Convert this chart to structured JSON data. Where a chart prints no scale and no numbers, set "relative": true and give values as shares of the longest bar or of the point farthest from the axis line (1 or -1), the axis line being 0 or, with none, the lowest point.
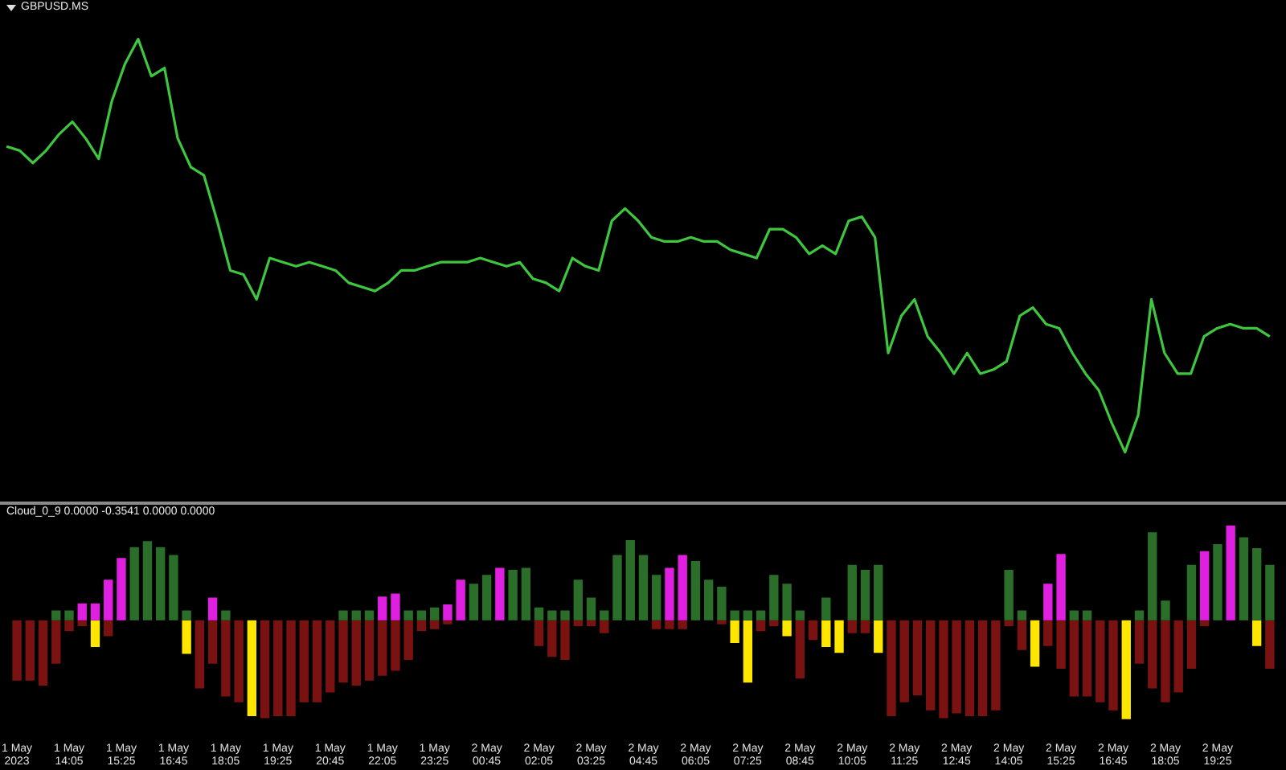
{
  "chart_data": [
    {
      "type": "line",
      "title": "GBPUSD.MS",
      "relative": true,
      "categories": [
        null,
        null,
        null,
        null,
        null,
        null,
        null,
        null,
        null,
        null,
        null,
        null,
        null,
        null,
        null,
        null,
        null,
        null,
        null,
        null,
        null,
        null,
        null,
        null,
        null,
        null,
        null,
        null,
        null,
        null,
        null,
        null,
        null,
        null,
        null,
        null,
        null,
        null,
        null,
        null,
        null,
        null,
        null,
        null,
        null,
        null,
        null,
        null,
        null,
        null,
        null,
        null,
        null,
        null,
        null,
        null,
        null,
        null,
        null,
        null,
        null,
        null,
        null,
        null,
        null,
        null,
        null,
        null,
        null,
        null,
        null,
        null,
        null,
        null,
        null,
        null,
        null,
        null,
        null,
        null,
        null,
        null,
        null,
        null,
        null,
        null,
        null,
        null,
        null,
        null,
        null,
        null,
        null,
        null,
        null,
        null,
        null
      ],
      "series": [
        {
          "color": "#3ec63e",
          "values": [
            0.74,
            0.73,
            0.7,
            0.73,
            0.77,
            0.8,
            0.76,
            0.71,
            0.85,
            0.94,
            1,
            0.91,
            0.93,
            0.76,
            0.69,
            0.67,
            0.56,
            0.44,
            0.43,
            0.37,
            0.47,
            0.46,
            0.45,
            0.46,
            0.45,
            0.44,
            0.41,
            0.4,
            0.39,
            0.41,
            0.44,
            0.44,
            0.45,
            0.46,
            0.46,
            0.46,
            0.47,
            0.46,
            0.45,
            0.46,
            0.42,
            0.41,
            0.39,
            0.47,
            0.45,
            0.44,
            0.56,
            0.59,
            0.56,
            0.52,
            0.51,
            0.51,
            0.52,
            0.51,
            0.51,
            0.49,
            0.48,
            0.47,
            0.54,
            0.54,
            0.52,
            0.48,
            0.5,
            0.48,
            0.56,
            0.57,
            0.52,
            0.24,
            0.33,
            0.37,
            0.28,
            0.24,
            0.19,
            0.24,
            0.19,
            0.2,
            0.22,
            0.33,
            0.35,
            0.31,
            0.3,
            0.24,
            0.19,
            0.15,
            0.07,
            0,
            0.09,
            0.37,
            0.24,
            0.19,
            0.19,
            0.28,
            0.3,
            0.31,
            0.3,
            0.3,
            0.28
          ]
        }
      ]
    },
    {
      "type": "bar",
      "title": "Cloud_0_9 0.0000 -0.3541 0.0000 0.0000",
      "relative": true,
      "stacked": true,
      "categories": [
        "1 May 2023",
        null,
        null,
        null,
        "1 May 14:05",
        null,
        null,
        null,
        "1 May 15:25",
        null,
        null,
        null,
        "1 May 16:45",
        null,
        null,
        null,
        "1 May 18:05",
        null,
        null,
        null,
        "1 May 19:25",
        null,
        null,
        null,
        "1 May 20:45",
        null,
        null,
        null,
        "1 May 22:05",
        null,
        null,
        null,
        "1 May 23:25",
        null,
        null,
        null,
        "2 May 00:45",
        null,
        null,
        null,
        "2 May 02:05",
        null,
        null,
        null,
        "2 May 03:25",
        null,
        null,
        null,
        "2 May 04:45",
        null,
        null,
        null,
        "2 May 06:05",
        null,
        null,
        null,
        "2 May 07:25",
        null,
        null,
        null,
        "2 May 08:45",
        null,
        null,
        null,
        "2 May 10:05",
        null,
        null,
        null,
        "2 May 11:25",
        null,
        null,
        null,
        "2 May 12:45",
        null,
        null,
        null,
        "2 May 14:05",
        null,
        null,
        null,
        "2 May 15:25",
        null,
        null,
        null,
        "2 May 16:45",
        null,
        null,
        null,
        "2 May 18:05",
        null,
        null,
        null,
        "2 May 19:25",
        null,
        null,
        null,
        null
      ],
      "series": [
        {
          "values": [
            0,
            0,
            0,
            0.1,
            0.1,
            0.17,
            0.17,
            0.41,
            0.63,
            0.74,
            0.8,
            0.74,
            0.66,
            0.1,
            0,
            0.23,
            0.1,
            0,
            0,
            0,
            0,
            0,
            0,
            0,
            0,
            0.1,
            0.1,
            0.1,
            0.24,
            0.27,
            0.1,
            0.1,
            0.13,
            0.16,
            0.41,
            0.37,
            0.46,
            0.53,
            0.51,
            0.53,
            0.13,
            0.1,
            0.1,
            0.41,
            0.23,
            0.1,
            0.66,
            0.81,
            0.66,
            0.46,
            0.53,
            0.66,
            0.6,
            0.41,
            0.34,
            0.1,
            0.1,
            0.1,
            0.46,
            0.37,
            0.1,
            0,
            0.23,
            0,
            0.56,
            0.51,
            0.56,
            0,
            0,
            0,
            0,
            0,
            0,
            0,
            0,
            0,
            0.51,
            0.1,
            0,
            0.37,
            0.67,
            0.1,
            0.1,
            0,
            0,
            0,
            0.1,
            0.89,
            0.2,
            0,
            0.56,
            0.7,
            0.77,
            0.96,
            0.84,
            0.73,
            0.56
          ],
          "colors": [
            "#2a6e2a",
            "#2a6e2a",
            "#2a6e2a",
            "#2a6e2a",
            "#2a6e2a",
            "#e020e0",
            "#e020e0",
            "#e020e0",
            "#e020e0",
            "#2a6e2a",
            "#2a6e2a",
            "#2a6e2a",
            "#2a6e2a",
            "#2a6e2a",
            "#2a6e2a",
            "#e020e0",
            "#2a6e2a",
            "#2a6e2a",
            "#2a6e2a",
            "#2a6e2a",
            "#2a6e2a",
            "#2a6e2a",
            "#2a6e2a",
            "#2a6e2a",
            "#2a6e2a",
            "#2a6e2a",
            "#2a6e2a",
            "#2a6e2a",
            "#e020e0",
            "#e020e0",
            "#2a6e2a",
            "#2a6e2a",
            "#2a6e2a",
            "#e020e0",
            "#e020e0",
            "#2a6e2a",
            "#2a6e2a",
            "#e020e0",
            "#2a6e2a",
            "#2a6e2a",
            "#2a6e2a",
            "#2a6e2a",
            "#2a6e2a",
            "#2a6e2a",
            "#2a6e2a",
            "#2a6e2a",
            "#2a6e2a",
            "#2a6e2a",
            "#2a6e2a",
            "#2a6e2a",
            "#e020e0",
            "#e020e0",
            "#2a6e2a",
            "#2a6e2a",
            "#2a6e2a",
            "#2a6e2a",
            "#2a6e2a",
            "#2a6e2a",
            "#2a6e2a",
            "#2a6e2a",
            "#2a6e2a",
            "#2a6e2a",
            "#2a6e2a",
            "#2a6e2a",
            "#2a6e2a",
            "#2a6e2a",
            "#2a6e2a",
            "#2a6e2a",
            "#2a6e2a",
            "#2a6e2a",
            "#2a6e2a",
            "#2a6e2a",
            "#2a6e2a",
            "#2a6e2a",
            "#2a6e2a",
            "#2a6e2a",
            "#2a6e2a",
            "#2a6e2a",
            "#2a6e2a",
            "#e020e0",
            "#e020e0",
            "#2a6e2a",
            "#2a6e2a",
            "#2a6e2a",
            "#2a6e2a",
            "#2a6e2a",
            "#2a6e2a",
            "#2a6e2a",
            "#2a6e2a",
            "#2a6e2a",
            "#2a6e2a",
            "#e020e0",
            "#2a6e2a",
            "#e020e0",
            "#2a6e2a",
            "#2a6e2a",
            "#2a6e2a"
          ]
        },
        {
          "values": [
            -0.61,
            -0.61,
            -0.66,
            -0.44,
            -0.11,
            -0.06,
            -0.27,
            -0.16,
            0,
            0,
            0,
            0,
            0,
            -0.34,
            -0.69,
            -0.44,
            -0.77,
            -0.83,
            -0.97,
            -0.99,
            -0.97,
            -0.97,
            -0.83,
            -0.83,
            -0.73,
            -0.63,
            -0.66,
            -0.61,
            -0.56,
            -0.51,
            -0.4,
            -0.11,
            -0.09,
            -0.04,
            0,
            0,
            0,
            0,
            0,
            0,
            -0.26,
            -0.37,
            -0.4,
            -0.06,
            -0.06,
            -0.13,
            0,
            0,
            0,
            -0.09,
            -0.09,
            -0.09,
            0,
            0,
            -0.04,
            -0.23,
            -0.63,
            -0.11,
            -0.06,
            -0.16,
            -0.59,
            -0.2,
            -0.27,
            -0.33,
            -0.13,
            -0.13,
            -0.33,
            -0.97,
            -0.83,
            -0.76,
            -0.91,
            -0.99,
            -0.94,
            -0.97,
            -0.97,
            -0.91,
            -0.06,
            -0.3,
            -0.47,
            -0.26,
            -0.49,
            -0.77,
            -0.77,
            -0.83,
            -0.91,
            -1,
            -0.44,
            -0.69,
            -0.83,
            -0.73,
            -0.49,
            -0.06,
            0,
            0,
            0,
            -0.26,
            -0.49
          ],
          "colors": [
            "#7a1212",
            "#7a1212",
            "#7a1212",
            "#7a1212",
            "#7a1212",
            "#7a1212",
            "#ffe600",
            "#7a1212",
            "#7a1212",
            "#7a1212",
            "#7a1212",
            "#7a1212",
            "#7a1212",
            "#ffe600",
            "#7a1212",
            "#7a1212",
            "#7a1212",
            "#7a1212",
            "#ffe600",
            "#7a1212",
            "#7a1212",
            "#7a1212",
            "#7a1212",
            "#7a1212",
            "#7a1212",
            "#7a1212",
            "#7a1212",
            "#7a1212",
            "#7a1212",
            "#7a1212",
            "#7a1212",
            "#7a1212",
            "#7a1212",
            "#7a1212",
            "#7a1212",
            "#7a1212",
            "#7a1212",
            "#7a1212",
            "#7a1212",
            "#7a1212",
            "#7a1212",
            "#7a1212",
            "#7a1212",
            "#7a1212",
            "#7a1212",
            "#7a1212",
            "#7a1212",
            "#7a1212",
            "#7a1212",
            "#7a1212",
            "#7a1212",
            "#7a1212",
            "#7a1212",
            "#7a1212",
            "#7a1212",
            "#ffe600",
            "#ffe600",
            "#7a1212",
            "#7a1212",
            "#ffe600",
            "#7a1212",
            "#7a1212",
            "#ffe600",
            "#ffe600",
            "#7a1212",
            "#7a1212",
            "#ffe600",
            "#7a1212",
            "#7a1212",
            "#7a1212",
            "#7a1212",
            "#7a1212",
            "#7a1212",
            "#7a1212",
            "#7a1212",
            "#7a1212",
            "#7a1212",
            "#7a1212",
            "#ffe600",
            "#7a1212",
            "#7a1212",
            "#7a1212",
            "#7a1212",
            "#7a1212",
            "#7a1212",
            "#ffe600",
            "#7a1212",
            "#7a1212",
            "#7a1212",
            "#7a1212",
            "#7a1212",
            "#7a1212",
            "#7a1212",
            "#7a1212",
            "#7a1212",
            "#ffe600",
            "#7a1212"
          ]
        }
      ]
    }
  ]
}
